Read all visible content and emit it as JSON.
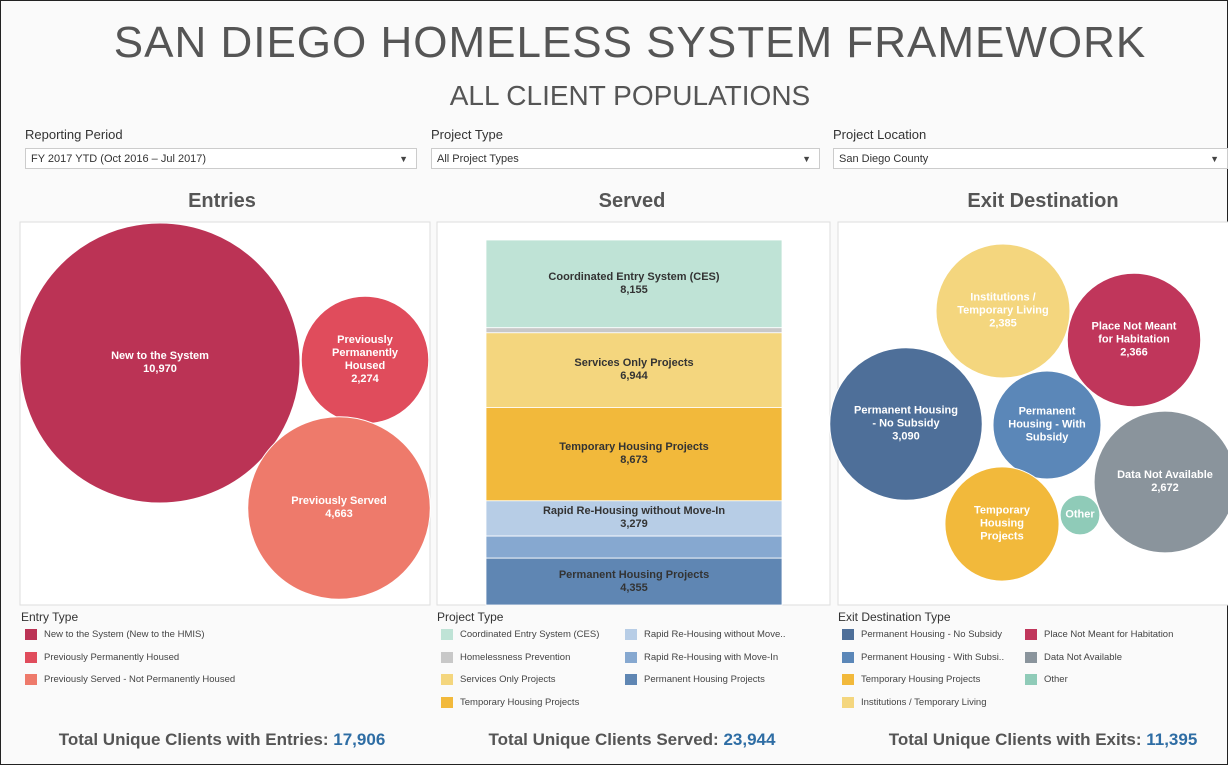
{
  "header": {
    "title": "SAN DIEGO HOMELESS SYSTEM FRAMEWORK",
    "subtitle": "ALL CLIENT POPULATIONS"
  },
  "filters": [
    {
      "label": "Reporting Period",
      "value": "FY 2017 YTD (Oct 2016 – Jul 2017)"
    },
    {
      "label": "Project Type",
      "value": "All Project Types"
    },
    {
      "label": "Project Location",
      "value": "San Diego County"
    }
  ],
  "chart_data": [
    {
      "type": "bubble",
      "title": "Entries",
      "categories": [
        "New to the System",
        "Previously Permanently Housed",
        "Previously Served"
      ],
      "values": [
        10970,
        2274,
        4663
      ],
      "value_labels": [
        "10,970",
        "2,274",
        "4,663"
      ],
      "colors": [
        "#bb3355",
        "#e04c5c",
        "#ee7a6b"
      ],
      "legend": {
        "title": "Entry Type",
        "entries": [
          "New to the System (New to the HMIS)",
          "Previously Permanently Housed",
          "Previously Served - Not Permanently Housed"
        ]
      },
      "total": {
        "label": "Total Unique Clients with Entries:",
        "value": "17,906"
      }
    },
    {
      "type": "bar",
      "stacked": true,
      "title": "Served",
      "categories": [
        "Coordinated Entry System (CES)",
        null,
        "Services Only Projects",
        "Temporary Housing Projects",
        "Rapid Re-Housing without Move-In",
        null,
        "Permanent Housing Projects"
      ],
      "values": [
        8155,
        470,
        6944,
        8673,
        3279,
        2050,
        4355
      ],
      "value_labels": [
        "8,155",
        null,
        "6,944",
        "8,673",
        "3,279",
        null,
        "4,355"
      ],
      "colors": [
        "#bfe3d6",
        "#c8c8c8",
        "#f4d67e",
        "#f2b93b",
        "#b7cde6",
        "#86a8d0",
        "#5f86b3"
      ],
      "legend": {
        "title": "Project Type",
        "entries": [
          "Coordinated Entry System (CES)",
          "Homelessness Prevention",
          "Services Only Projects",
          "Temporary Housing Projects",
          "Rapid Re-Housing without Move..",
          "Rapid Re-Housing with Move-In",
          "Permanent Housing Projects"
        ]
      },
      "total": {
        "label": "Total Unique Clients Served:",
        "value": "23,944"
      }
    },
    {
      "type": "bubble",
      "title": "Exit Destination",
      "categories": [
        "Permanent Housing - No Subsidy",
        "Permanent Housing - With Subsidy",
        "Temporary Housing Projects",
        "Institutions / Temporary Living",
        "Place Not Meant for Habitation",
        "Data Not Available",
        "Other"
      ],
      "values": [
        3090,
        1550,
        1730,
        2385,
        2366,
        2672,
        210
      ],
      "value_labels": [
        "3,090",
        null,
        null,
        "2,385",
        "2,366",
        "2,672",
        null
      ],
      "colors": [
        "#4e6f99",
        "#5b87b8",
        "#f2b93b",
        "#f4d67e",
        "#c0365b",
        "#8a949c",
        "#8fcbb8"
      ],
      "legend": {
        "title": "Exit Destination Type",
        "entries": [
          "Permanent Housing - No Subsidy",
          "Permanent Housing - With Subsi..",
          "Temporary Housing Projects",
          "Institutions / Temporary Living",
          "Place Not Meant for Habitation",
          "Data Not Available",
          "Other"
        ]
      },
      "total": {
        "label": "Total Unique Clients with Exits:",
        "value": "11,395"
      }
    }
  ]
}
